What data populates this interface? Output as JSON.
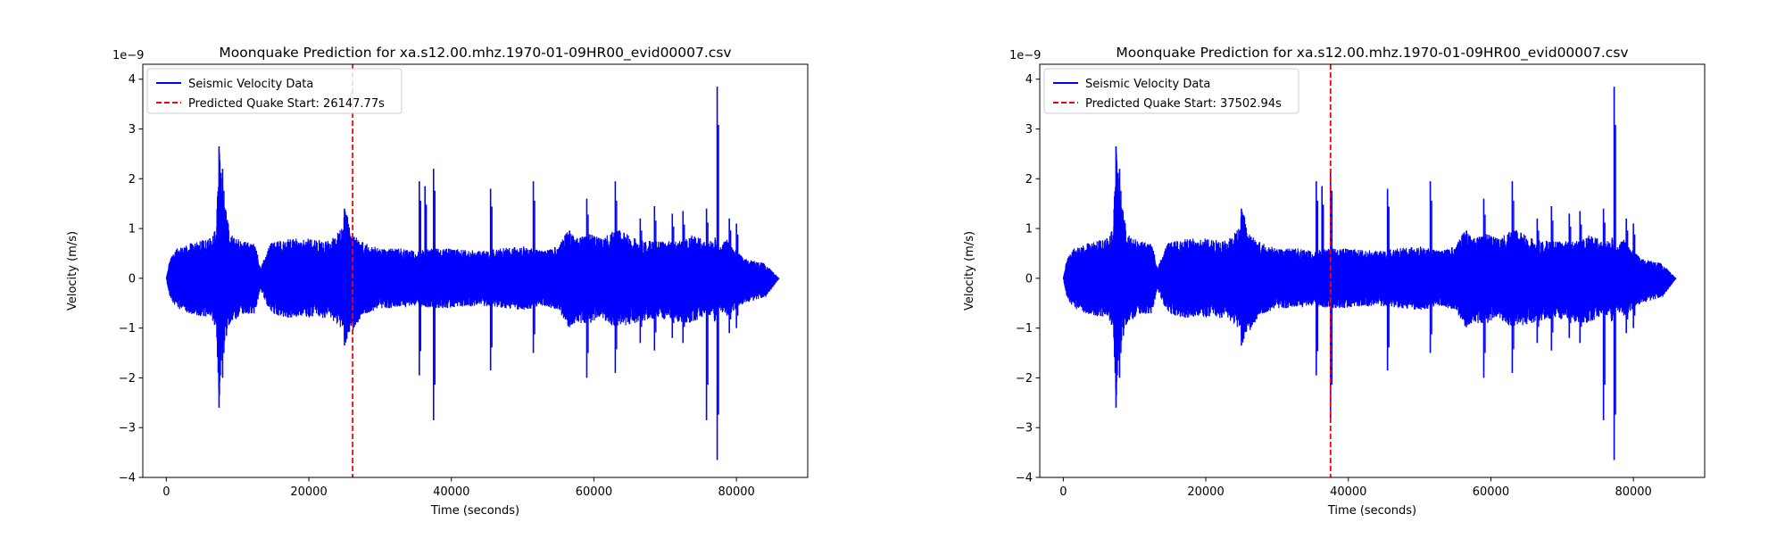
{
  "figure": {
    "background": "#ffffff"
  },
  "chart_data": [
    {
      "type": "line",
      "title": "Moonquake Prediction for xa.s12.00.mhz.1970-01-09HR00_evid00007.csv",
      "xlabel": "Time (seconds)",
      "ylabel": "Velocity (m/s)",
      "y_offset_label": "1e−9",
      "xlim": [
        -3300,
        90000
      ],
      "ylim": [
        -4.0,
        4.3
      ],
      "xticks": [
        0,
        20000,
        40000,
        60000,
        80000
      ],
      "xtick_labels": [
        "0",
        "20000",
        "40000",
        "60000",
        "80000"
      ],
      "yticks": [
        -4,
        -3,
        -2,
        -1,
        0,
        1,
        2,
        3,
        4
      ],
      "ytick_labels": [
        "−4",
        "−3",
        "−2",
        "−1",
        "0",
        "1",
        "2",
        "3",
        "4"
      ],
      "grid": false,
      "legend_position": "top-left",
      "series": [
        {
          "name": "Seismic Velocity Data",
          "color": "#0000ff",
          "style": "solid",
          "envelope": {
            "t": [
              0,
              500,
              1500,
              3000,
              4500,
              6000,
              7000,
              7400,
              7700,
              8200,
              9000,
              10500,
              12500,
              13200,
              14500,
              17000,
              20000,
              23000,
              24500,
              25200,
              26000,
              27500,
              30000,
              33000,
              35000,
              37000,
              40000,
              44000,
              47000,
              50000,
              53000,
              55000,
              56500,
              57500,
              59500,
              61000,
              63000,
              66000,
              69000,
              72000,
              74000,
              76000,
              77000,
              77500,
              78500,
              81000,
              84000,
              86000
            ],
            "upper": [
              0,
              0.4,
              0.6,
              0.7,
              0.75,
              0.8,
              1.0,
              2.6,
              2.2,
              1.5,
              0.9,
              0.75,
              0.7,
              0.2,
              0.7,
              0.8,
              0.8,
              0.75,
              1.0,
              1.4,
              0.9,
              0.75,
              0.6,
              0.6,
              0.55,
              0.6,
              0.6,
              0.55,
              0.6,
              0.65,
              0.55,
              0.65,
              1.0,
              0.8,
              0.9,
              0.8,
              1.0,
              0.8,
              0.75,
              0.75,
              0.9,
              0.7,
              0.9,
              0.6,
              0.8,
              0.4,
              0.3,
              0
            ],
            "lower": [
              0,
              -0.4,
              -0.6,
              -0.7,
              -0.75,
              -0.8,
              -1.0,
              -2.6,
              -2.0,
              -1.3,
              -0.9,
              -0.75,
              -0.7,
              -0.2,
              -0.7,
              -0.8,
              -0.8,
              -0.8,
              -1.0,
              -1.3,
              -1.1,
              -0.75,
              -0.6,
              -0.6,
              -0.55,
              -0.6,
              -0.6,
              -0.55,
              -0.6,
              -0.65,
              -0.55,
              -0.65,
              -1.0,
              -0.9,
              -0.9,
              -0.8,
              -1.0,
              -0.9,
              -0.8,
              -0.9,
              -0.9,
              -0.7,
              -0.9,
              -0.6,
              -0.8,
              -0.5,
              -0.4,
              0
            ]
          },
          "spikes": [
            {
              "t": 7400,
              "max": 2.65,
              "min": -2.6
            },
            {
              "t": 7900,
              "max": 2.2,
              "min": -2.0
            },
            {
              "t": 25000,
              "max": 1.4,
              "min": -1.35
            },
            {
              "t": 35500,
              "max": 1.95,
              "min": -1.95
            },
            {
              "t": 36300,
              "max": 1.85,
              "min": -0.5
            },
            {
              "t": 37500,
              "max": 2.2,
              "min": -2.85
            },
            {
              "t": 45500,
              "max": 1.8,
              "min": -1.85
            },
            {
              "t": 51500,
              "max": 1.95,
              "min": -1.5
            },
            {
              "t": 59000,
              "max": 1.6,
              "min": -2.0
            },
            {
              "t": 63000,
              "max": 1.95,
              "min": -1.9
            },
            {
              "t": 66500,
              "max": 1.2,
              "min": -1.3
            },
            {
              "t": 68500,
              "max": 1.45,
              "min": -1.45
            },
            {
              "t": 71000,
              "max": 1.3,
              "min": -1.2
            },
            {
              "t": 72500,
              "max": 1.35,
              "min": -1.3
            },
            {
              "t": 75800,
              "max": 1.4,
              "min": -2.85
            },
            {
              "t": 77300,
              "max": 3.85,
              "min": -3.65
            },
            {
              "t": 79000,
              "max": 1.2,
              "min": -1.1
            },
            {
              "t": 80000,
              "max": 1.1,
              "min": -1.0
            }
          ]
        },
        {
          "name": "Predicted Quake Start: 26147.77s",
          "color": "#ff0000",
          "style": "dashed",
          "x": 26147.77
        }
      ]
    },
    {
      "type": "line",
      "title": "Moonquake Prediction for xa.s12.00.mhz.1970-01-09HR00_evid00007.csv",
      "xlabel": "Time (seconds)",
      "ylabel": "Velocity (m/s)",
      "y_offset_label": "1e−9",
      "xlim": [
        -3300,
        90000
      ],
      "ylim": [
        -4.0,
        4.3
      ],
      "xticks": [
        0,
        20000,
        40000,
        60000,
        80000
      ],
      "xtick_labels": [
        "0",
        "20000",
        "40000",
        "60000",
        "80000"
      ],
      "yticks": [
        -4,
        -3,
        -2,
        -1,
        0,
        1,
        2,
        3,
        4
      ],
      "ytick_labels": [
        "−4",
        "−3",
        "−2",
        "−1",
        "0",
        "1",
        "2",
        "3",
        "4"
      ],
      "grid": false,
      "legend_position": "top-left",
      "series": [
        {
          "name": "Seismic Velocity Data",
          "color": "#0000ff",
          "style": "solid",
          "envelope": {
            "t": [
              0,
              500,
              1500,
              3000,
              4500,
              6000,
              7000,
              7400,
              7700,
              8200,
              9000,
              10500,
              12500,
              13200,
              14500,
              17000,
              20000,
              23000,
              24500,
              25200,
              26000,
              27500,
              30000,
              33000,
              35000,
              37000,
              40000,
              44000,
              47000,
              50000,
              53000,
              55000,
              56500,
              57500,
              59500,
              61000,
              63000,
              66000,
              69000,
              72000,
              74000,
              76000,
              77000,
              77500,
              78500,
              81000,
              84000,
              86000
            ],
            "upper": [
              0,
              0.4,
              0.6,
              0.7,
              0.75,
              0.8,
              1.0,
              2.6,
              2.2,
              1.5,
              0.9,
              0.75,
              0.7,
              0.2,
              0.7,
              0.8,
              0.8,
              0.75,
              1.0,
              1.4,
              0.9,
              0.75,
              0.6,
              0.6,
              0.55,
              0.6,
              0.6,
              0.55,
              0.6,
              0.65,
              0.55,
              0.65,
              1.0,
              0.8,
              0.9,
              0.8,
              1.0,
              0.8,
              0.75,
              0.75,
              0.9,
              0.7,
              0.9,
              0.6,
              0.8,
              0.4,
              0.3,
              0
            ],
            "lower": [
              0,
              -0.4,
              -0.6,
              -0.7,
              -0.75,
              -0.8,
              -1.0,
              -2.6,
              -2.0,
              -1.3,
              -0.9,
              -0.75,
              -0.7,
              -0.2,
              -0.7,
              -0.8,
              -0.8,
              -0.8,
              -1.0,
              -1.3,
              -1.1,
              -0.75,
              -0.6,
              -0.6,
              -0.55,
              -0.6,
              -0.6,
              -0.55,
              -0.6,
              -0.65,
              -0.55,
              -0.65,
              -1.0,
              -0.9,
              -0.9,
              -0.8,
              -1.0,
              -0.9,
              -0.8,
              -0.9,
              -0.9,
              -0.7,
              -0.9,
              -0.6,
              -0.8,
              -0.5,
              -0.4,
              0
            ]
          },
          "spikes": [
            {
              "t": 7400,
              "max": 2.65,
              "min": -2.6
            },
            {
              "t": 7900,
              "max": 2.2,
              "min": -2.0
            },
            {
              "t": 25000,
              "max": 1.4,
              "min": -1.35
            },
            {
              "t": 35500,
              "max": 1.95,
              "min": -1.95
            },
            {
              "t": 36300,
              "max": 1.85,
              "min": -0.5
            },
            {
              "t": 37500,
              "max": 2.2,
              "min": -2.85
            },
            {
              "t": 45500,
              "max": 1.8,
              "min": -1.85
            },
            {
              "t": 51500,
              "max": 1.95,
              "min": -1.5
            },
            {
              "t": 59000,
              "max": 1.6,
              "min": -2.0
            },
            {
              "t": 63000,
              "max": 1.95,
              "min": -1.9
            },
            {
              "t": 66500,
              "max": 1.2,
              "min": -1.3
            },
            {
              "t": 68500,
              "max": 1.45,
              "min": -1.45
            },
            {
              "t": 71000,
              "max": 1.3,
              "min": -1.2
            },
            {
              "t": 72500,
              "max": 1.35,
              "min": -1.3
            },
            {
              "t": 75800,
              "max": 1.4,
              "min": -2.85
            },
            {
              "t": 77300,
              "max": 3.85,
              "min": -3.65
            },
            {
              "t": 79000,
              "max": 1.2,
              "min": -1.1
            },
            {
              "t": 80000,
              "max": 1.1,
              "min": -1.0
            }
          ]
        },
        {
          "name": "Predicted Quake Start: 37502.94s",
          "color": "#ff0000",
          "style": "dashed",
          "x": 37502.94
        }
      ]
    }
  ]
}
